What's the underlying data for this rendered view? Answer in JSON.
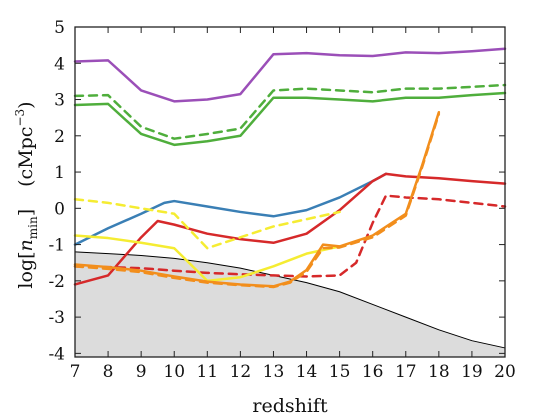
{
  "chart_data": {
    "type": "line",
    "xlabel": "redshift",
    "ylabel": "log[n_min]   (cMpc^-3)",
    "ylabel_parts": {
      "log": "log",
      "n": "n",
      "sub": "min",
      "unit": "(cMpc",
      "exp": "−3",
      "close": ")"
    },
    "xlim": [
      7,
      20
    ],
    "ylim": [
      -4.1,
      5
    ],
    "xticks": [
      "7",
      "8",
      "9",
      "10",
      "11",
      "12",
      "13",
      "14",
      "15",
      "16",
      "17",
      "18",
      "19",
      "20"
    ],
    "yticks": [
      "-4",
      "-3",
      "-2",
      "-1",
      "0",
      "1",
      "2",
      "3",
      "4",
      "5"
    ],
    "grid": false,
    "legend": "none",
    "shaded_region": {
      "color": "#dcdcdc",
      "edge_color": "#000000",
      "x": [
        7,
        8,
        9,
        10,
        11,
        12,
        13,
        14,
        15,
        16,
        17,
        18,
        19,
        20
      ],
      "y": [
        -1.2,
        -1.25,
        -1.3,
        -1.38,
        -1.5,
        -1.65,
        -1.85,
        -2.05,
        -2.3,
        -2.65,
        -3.0,
        -3.35,
        -3.65,
        -3.85
      ]
    },
    "series": [
      {
        "color": "#9b4fb8",
        "style": "solid",
        "x": [
          7,
          8,
          9,
          10,
          11,
          12,
          13,
          14,
          15,
          16,
          17,
          18,
          19,
          20
        ],
        "y": [
          4.05,
          4.08,
          3.25,
          2.95,
          3.0,
          3.15,
          4.25,
          4.28,
          4.22,
          4.2,
          4.3,
          4.28,
          4.33,
          4.4
        ]
      },
      {
        "color": "#4fae3c",
        "style": "dashed",
        "x": [
          7,
          8,
          9,
          10,
          11,
          12,
          13,
          14,
          15,
          16,
          17,
          18,
          19,
          20
        ],
        "y": [
          3.1,
          3.12,
          2.25,
          1.92,
          2.05,
          2.2,
          3.25,
          3.3,
          3.25,
          3.2,
          3.3,
          3.3,
          3.35,
          3.4
        ]
      },
      {
        "color": "#4fae3c",
        "style": "solid",
        "x": [
          7,
          8,
          9,
          10,
          11,
          12,
          13,
          14,
          15,
          16,
          17,
          18,
          19,
          20
        ],
        "y": [
          2.85,
          2.88,
          2.05,
          1.75,
          1.85,
          2.0,
          3.05,
          3.05,
          3.0,
          2.95,
          3.05,
          3.05,
          3.12,
          3.18
        ]
      },
      {
        "color": "#3a7fb5",
        "style": "solid",
        "x": [
          7,
          8,
          9,
          9.7,
          10,
          11,
          12,
          13,
          14,
          15,
          16,
          16.4
        ],
        "y": [
          -1.0,
          -0.55,
          -0.15,
          0.15,
          0.2,
          0.05,
          -0.1,
          -0.22,
          -0.05,
          0.3,
          0.75,
          0.95
        ]
      },
      {
        "color": "#d6292a",
        "style": "solid",
        "x": [
          7,
          8,
          9,
          9.5,
          10,
          11,
          12,
          13,
          14,
          15,
          16,
          16.4,
          17,
          18,
          19,
          20
        ],
        "y": [
          -2.1,
          -1.85,
          -0.8,
          -0.35,
          -0.45,
          -0.7,
          -0.85,
          -0.95,
          -0.7,
          -0.05,
          0.75,
          0.95,
          0.88,
          0.83,
          0.75,
          0.68
        ]
      },
      {
        "color": "#d6292a",
        "style": "dashed",
        "x": [
          7,
          8,
          9,
          10,
          11,
          12,
          13,
          14,
          15,
          15.5,
          16,
          16.4,
          17,
          18,
          19,
          20
        ],
        "y": [
          -1.6,
          -1.62,
          -1.65,
          -1.72,
          -1.78,
          -1.82,
          -1.85,
          -1.88,
          -1.85,
          -1.5,
          -0.4,
          0.35,
          0.3,
          0.25,
          0.15,
          0.05
        ]
      },
      {
        "color": "#f5ec32",
        "style": "solid",
        "x": [
          7,
          8,
          9,
          10,
          11,
          12,
          13,
          14,
          15
        ],
        "y": [
          -0.75,
          -0.82,
          -0.95,
          -1.1,
          -2.0,
          -1.9,
          -1.6,
          -1.25,
          -1.05
        ]
      },
      {
        "color": "#f5ec32",
        "style": "dashed",
        "x": [
          7,
          8,
          9,
          10,
          11,
          12,
          13,
          14,
          15
        ],
        "y": [
          0.25,
          0.15,
          0.0,
          -0.15,
          -1.1,
          -0.8,
          -0.5,
          -0.3,
          -0.1
        ]
      },
      {
        "color": "#f28e1c",
        "style": "solid",
        "x": [
          7,
          8,
          9,
          10,
          11,
          12,
          13,
          13.5,
          14,
          14.5,
          15,
          16,
          17,
          17.5,
          18
        ],
        "y": [
          -1.55,
          -1.62,
          -1.72,
          -1.88,
          -2.02,
          -2.1,
          -2.15,
          -2.02,
          -1.7,
          -1.0,
          -1.05,
          -0.75,
          -0.15,
          1.2,
          2.65
        ]
      },
      {
        "color": "#f28e1c",
        "style": "dashed",
        "x": [
          7,
          8,
          9,
          10,
          11,
          12,
          13,
          13.5,
          14,
          14.5,
          15,
          16,
          17,
          17.5,
          18
        ],
        "y": [
          -1.6,
          -1.67,
          -1.76,
          -1.92,
          -2.05,
          -2.12,
          -2.17,
          -2.05,
          -1.75,
          -1.1,
          -1.08,
          -0.8,
          -0.2,
          1.15,
          2.6
        ]
      }
    ]
  }
}
